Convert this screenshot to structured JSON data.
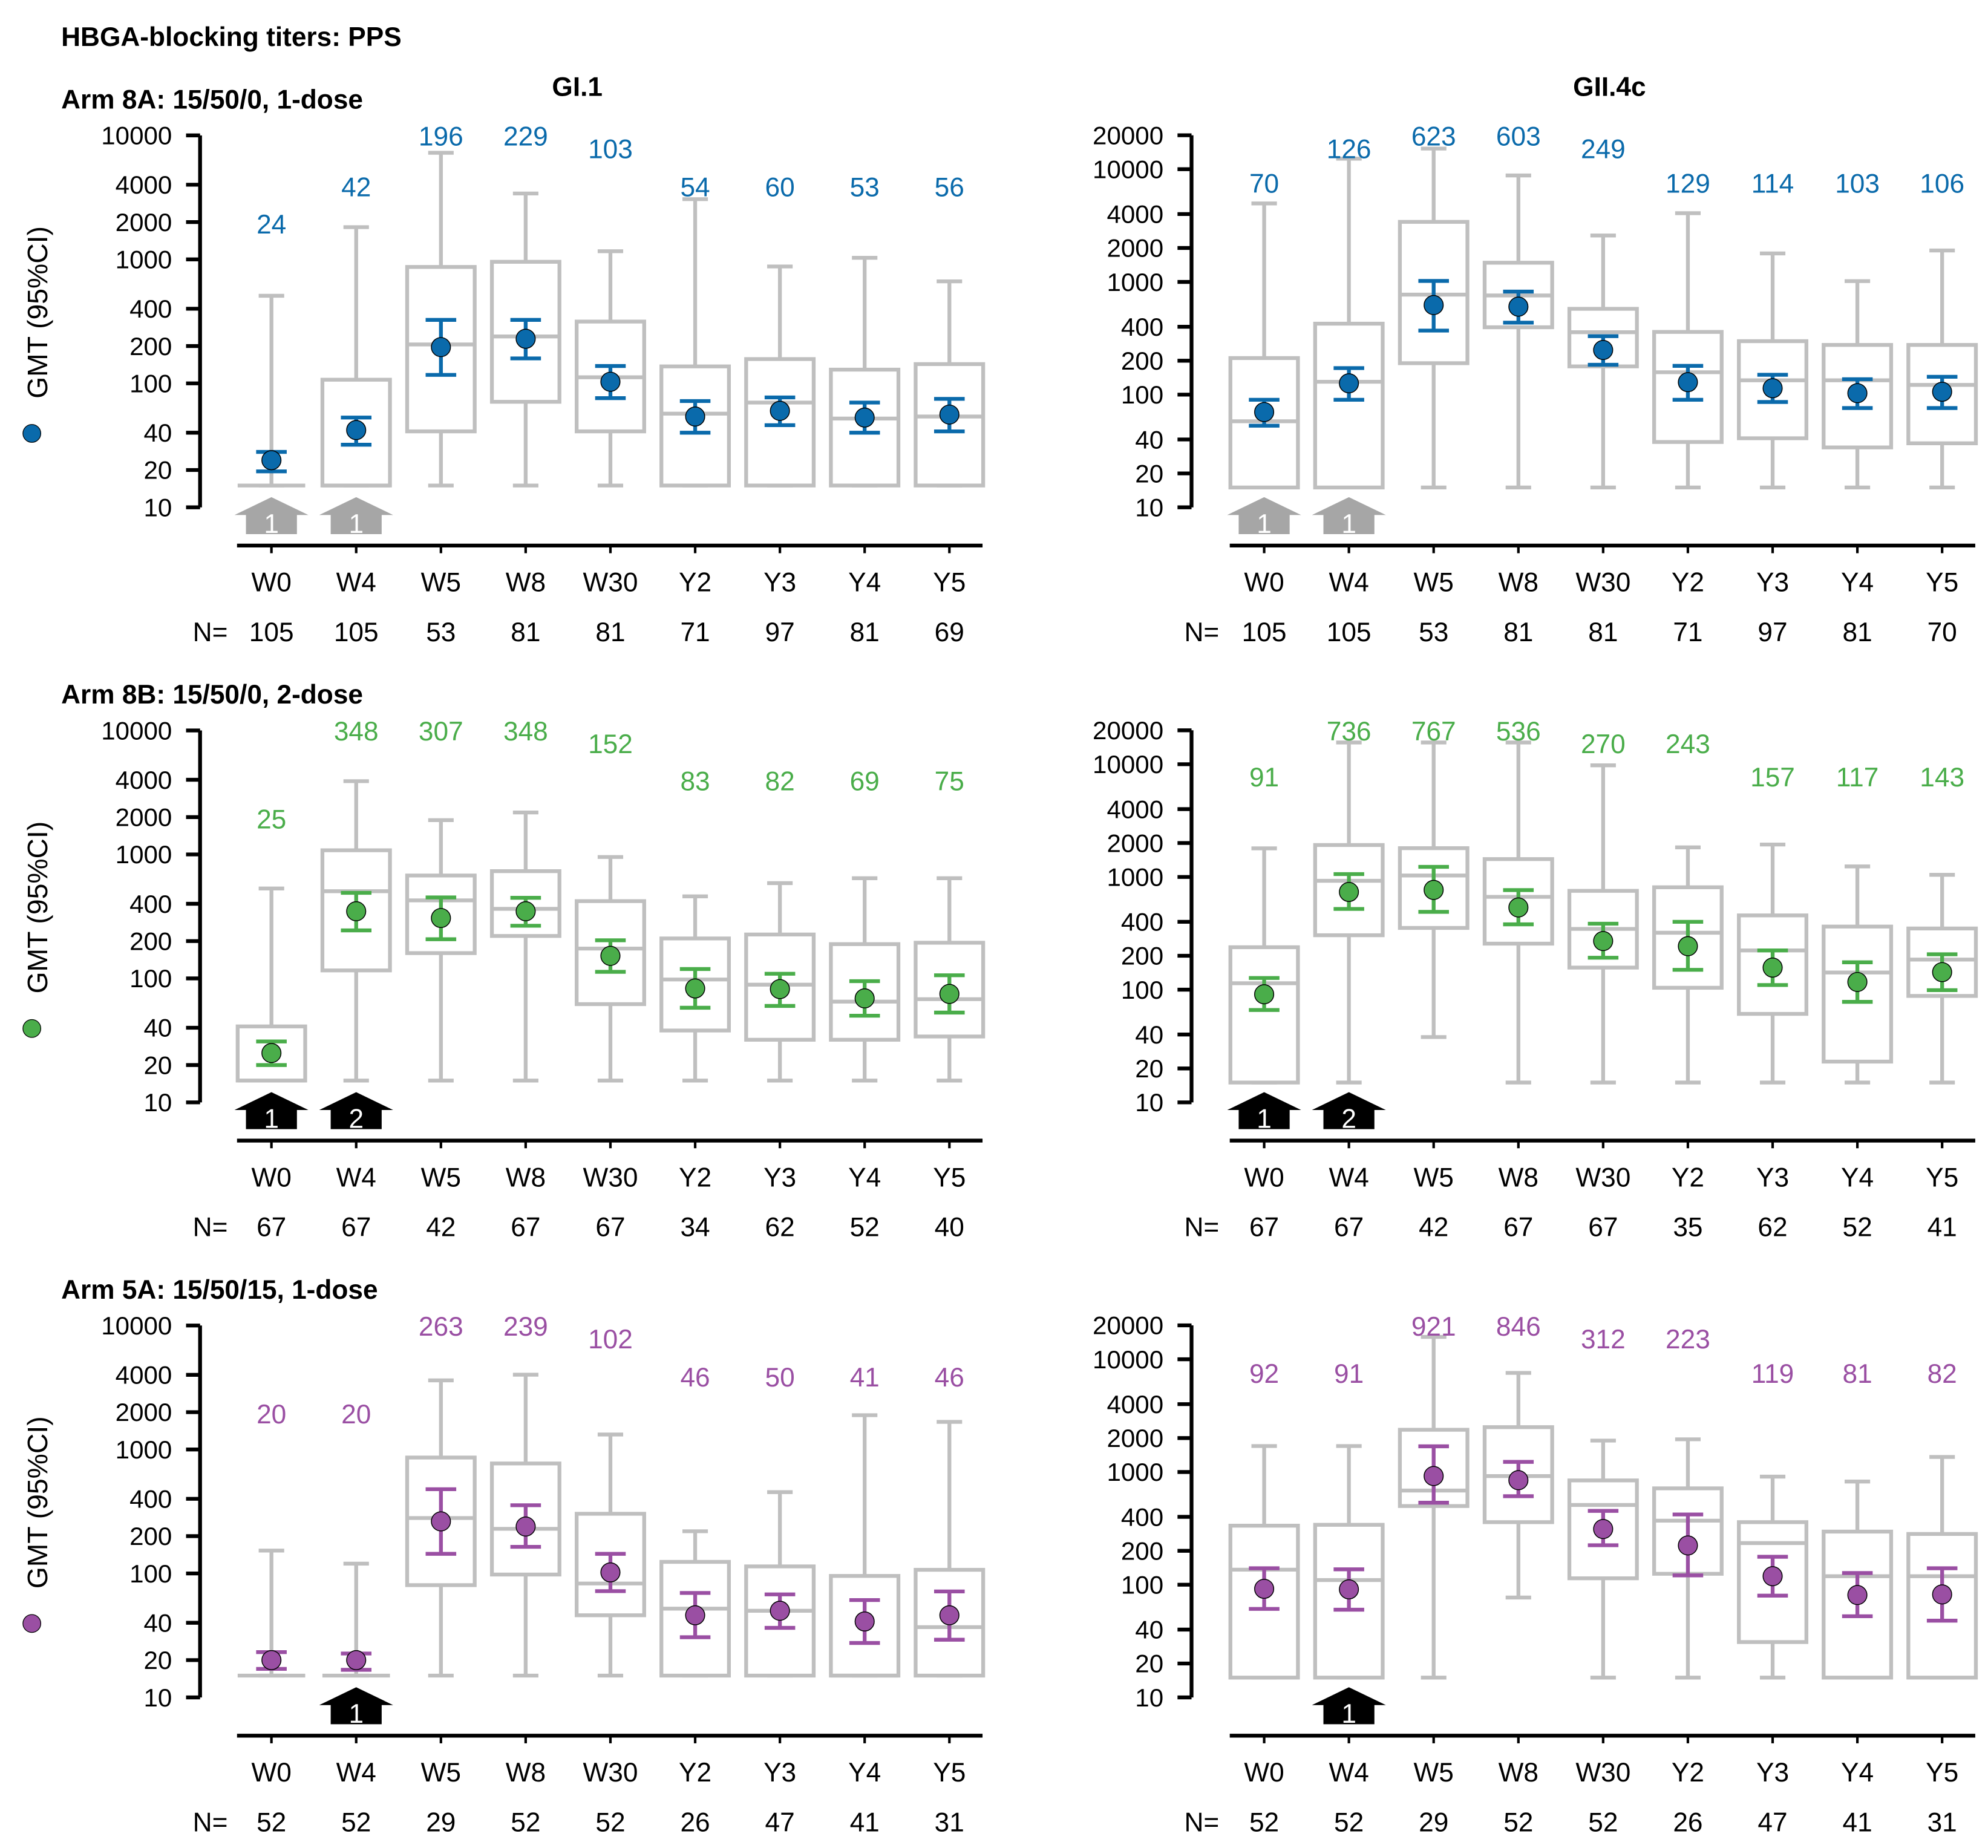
{
  "title": "HBGA-blocking titers: PPS",
  "y_axis_label": "GMT (95%CI)",
  "n_prefix": "N=",
  "colors": {
    "box": "#bfbfbf",
    "axis": "#000000",
    "marker_grey": "#a6a6a6",
    "marker_black": "#000000"
  },
  "chart_data": [
    {
      "type": "box",
      "arm": "Arm 8A: 15/50/0, 1-dose",
      "column_title": "GI.1",
      "color": "#0a6aab",
      "yscale": "log",
      "ylim": [
        10,
        10000
      ],
      "yticks": [
        10,
        20,
        40,
        100,
        200,
        400,
        1000,
        2000,
        4000,
        10000
      ],
      "categories": [
        "W0",
        "W4",
        "W5",
        "W8",
        "W30",
        "Y2",
        "Y3",
        "Y4",
        "Y5"
      ],
      "n": [
        105,
        105,
        53,
        81,
        81,
        71,
        97,
        81,
        69
      ],
      "gmt": [
        24,
        42,
        196,
        229,
        103,
        54,
        60,
        53,
        56
      ],
      "ci_low": [
        19.5,
        32,
        117,
        159,
        76,
        40,
        46,
        40,
        41
      ],
      "ci_high": [
        28,
        53,
        325,
        325,
        138,
        72,
        77,
        70,
        75
      ],
      "box_min": [
        15,
        15,
        15,
        15,
        15,
        15,
        15,
        15,
        15
      ],
      "q1": [
        15,
        15,
        41,
        71,
        41,
        15,
        15,
        15,
        15
      ],
      "median": [
        15,
        15,
        206,
        239,
        112,
        57,
        70,
        52,
        54
      ],
      "q3": [
        15,
        107,
        869,
        956,
        315,
        137,
        157,
        129,
        143
      ],
      "box_max": [
        509,
        1820,
        7240,
        3400,
        1164,
        3060,
        877,
        1030,
        665
      ],
      "markers": [
        {
          "category": "W0",
          "label": "1",
          "style": "grey"
        },
        {
          "category": "W4",
          "label": "1",
          "style": "grey"
        }
      ]
    },
    {
      "type": "box",
      "column_title": "GII.4c",
      "color": "#0a6aab",
      "yscale": "log",
      "ylim": [
        10,
        20000
      ],
      "yticks": [
        10,
        20,
        40,
        100,
        200,
        400,
        1000,
        2000,
        4000,
        10000,
        20000
      ],
      "categories": [
        "W0",
        "W4",
        "W5",
        "W8",
        "W30",
        "Y2",
        "Y3",
        "Y4",
        "Y5"
      ],
      "n": [
        105,
        105,
        53,
        81,
        81,
        71,
        97,
        81,
        70
      ],
      "gmt": [
        70,
        126,
        623,
        603,
        249,
        129,
        114,
        103,
        106
      ],
      "ci_low": [
        53,
        90,
        370,
        435,
        184,
        90,
        86,
        76,
        76
      ],
      "ci_high": [
        90,
        172,
        1020,
        820,
        330,
        180,
        150,
        137,
        144
      ],
      "box_min": [
        15,
        15,
        15,
        15,
        15,
        15,
        15,
        15,
        15
      ],
      "q1": [
        15,
        15,
        190,
        396,
        178,
        38,
        41,
        34,
        37
      ],
      "median": [
        58,
        130,
        771,
        758,
        358,
        158,
        134,
        134,
        122
      ],
      "q3": [
        211,
        426,
        3410,
        1480,
        577,
        360,
        298,
        276,
        276
      ],
      "box_max": [
        4970,
        12400,
        15240,
        8800,
        2580,
        4070,
        1790,
        1016,
        1900
      ],
      "markers": [
        {
          "category": "W0",
          "label": "1",
          "style": "grey"
        },
        {
          "category": "W4",
          "label": "1",
          "style": "grey"
        }
      ]
    },
    {
      "type": "box",
      "arm": "Arm 8B: 15/50/0, 2-dose",
      "color": "#4aad4a",
      "yscale": "log",
      "ylim": [
        10,
        10000
      ],
      "yticks": [
        10,
        20,
        40,
        100,
        200,
        400,
        1000,
        2000,
        4000,
        10000
      ],
      "categories": [
        "W0",
        "W4",
        "W5",
        "W8",
        "W30",
        "Y2",
        "Y3",
        "Y4",
        "Y5"
      ],
      "n": [
        67,
        67,
        42,
        67,
        67,
        34,
        62,
        52,
        40
      ],
      "gmt": [
        25,
        348,
        307,
        348,
        152,
        83,
        82,
        69,
        75
      ],
      "ci_low": [
        20,
        244,
        207,
        266,
        113,
        58,
        60,
        50,
        53
      ],
      "ci_high": [
        31,
        490,
        450,
        447,
        203,
        119,
        109,
        95,
        106
      ],
      "box_min": [
        15,
        15,
        15,
        15,
        15,
        15,
        15,
        15,
        15
      ],
      "q1": [
        15,
        116,
        160,
        220,
        62,
        38,
        32,
        32,
        34
      ],
      "median": [
        15,
        505,
        426,
        364,
        174,
        98,
        89,
        65,
        68
      ],
      "q3": [
        41,
        1080,
        676,
        733,
        420,
        210,
        226,
        189,
        194
      ],
      "box_max": [
        531,
        3900,
        1890,
        2180,
        953,
        459,
        587,
        643,
        643
      ],
      "markers": [
        {
          "category": "W0",
          "label": "1",
          "style": "black"
        },
        {
          "category": "W4",
          "label": "2",
          "style": "black"
        }
      ]
    },
    {
      "type": "box",
      "color": "#4aad4a",
      "yscale": "log",
      "ylim": [
        10,
        20000
      ],
      "yticks": [
        10,
        20,
        40,
        100,
        200,
        400,
        1000,
        2000,
        4000,
        10000,
        20000
      ],
      "categories": [
        "W0",
        "W4",
        "W5",
        "W8",
        "W30",
        "Y2",
        "Y3",
        "Y4",
        "Y5"
      ],
      "n": [
        67,
        67,
        42,
        67,
        67,
        35,
        62,
        52,
        41
      ],
      "gmt": [
        91,
        736,
        767,
        536,
        270,
        243,
        157,
        117,
        143
      ],
      "ci_low": [
        66,
        520,
        490,
        380,
        192,
        150,
        110,
        78,
        99
      ],
      "ci_high": [
        127,
        1060,
        1230,
        765,
        385,
        400,
        223,
        175,
        206
      ],
      "box_min": [
        15,
        15,
        38,
        15,
        15,
        15,
        15,
        15,
        15
      ],
      "q1": [
        15,
        304,
        353,
        256,
        157,
        104,
        61,
        23,
        88
      ],
      "median": [
        114,
        925,
        1030,
        666,
        346,
        320,
        223,
        142,
        185
      ],
      "q3": [
        238,
        1920,
        1800,
        1440,
        753,
        810,
        456,
        363,
        349
      ],
      "box_max": [
        1794,
        15600,
        15600,
        15600,
        9780,
        1830,
        1940,
        1240,
        1045
      ],
      "markers": [
        {
          "category": "W0",
          "label": "1",
          "style": "black"
        },
        {
          "category": "W4",
          "label": "2",
          "style": "black"
        }
      ]
    },
    {
      "type": "box",
      "arm": "Arm 5A: 15/50/15, 1-dose",
      "color": "#9a4fa3",
      "yscale": "log",
      "ylim": [
        10,
        10000
      ],
      "yticks": [
        10,
        20,
        40,
        100,
        200,
        400,
        1000,
        2000,
        4000,
        10000
      ],
      "categories": [
        "W0",
        "W4",
        "W5",
        "W8",
        "W30",
        "Y2",
        "Y3",
        "Y4",
        "Y5"
      ],
      "n": [
        52,
        52,
        29,
        52,
        52,
        26,
        47,
        41,
        31
      ],
      "gmt": [
        20,
        20,
        263,
        239,
        102,
        46,
        50,
        41,
        46
      ],
      "ci_low": [
        17,
        16.7,
        144,
        164,
        72,
        30.6,
        36.4,
        27.5,
        29.2
      ],
      "ci_high": [
        23.2,
        22.6,
        478,
        355,
        144,
        69.6,
        67.8,
        61,
        71.6
      ],
      "box_min": [
        15,
        15,
        15,
        15,
        15,
        15,
        15,
        15,
        15
      ],
      "q1": [
        15,
        15,
        80.5,
        98,
        46,
        15,
        15,
        15,
        15
      ],
      "median": [
        15,
        15,
        280,
        229,
        83,
        52,
        50,
        15,
        36.9
      ],
      "q3": [
        15,
        15,
        861,
        771,
        303,
        124,
        114,
        95.5,
        107
      ],
      "box_max": [
        153,
        120,
        3610,
        4010,
        1320,
        219,
        453,
        1890,
        1670
      ],
      "markers": [
        {
          "category": "W4",
          "label": "1",
          "style": "black"
        }
      ]
    },
    {
      "type": "box",
      "color": "#9a4fa3",
      "yscale": "log",
      "ylim": [
        10,
        20000
      ],
      "yticks": [
        10,
        20,
        40,
        100,
        200,
        400,
        1000,
        2000,
        4000,
        10000,
        20000
      ],
      "categories": [
        "W0",
        "W4",
        "W5",
        "W8",
        "W30",
        "Y2",
        "Y3",
        "Y4",
        "Y5"
      ],
      "n": [
        52,
        52,
        29,
        52,
        52,
        26,
        47,
        41,
        31
      ],
      "gmt": [
        92,
        91,
        921,
        846,
        312,
        223,
        119,
        81,
        82
      ],
      "ci_low": [
        61,
        60,
        534,
        610,
        224,
        121,
        80,
        52.5,
        48
      ],
      "ci_high": [
        140,
        137,
        1690,
        1230,
        452,
        420,
        177,
        127,
        140
      ],
      "box_min": [
        15,
        15,
        15,
        77,
        15,
        15,
        15,
        15,
        15
      ],
      "q1": [
        15,
        15,
        499,
        359,
        114,
        125,
        31,
        15,
        15
      ],
      "median": [
        136,
        110,
        685,
        920,
        510,
        370,
        234,
        119,
        119
      ],
      "q3": [
        334,
        340,
        2370,
        2500,
        842,
        716,
        359,
        296,
        282
      ],
      "box_max": [
        1700,
        1700,
        15800,
        7570,
        1900,
        1950,
        910,
        823,
        1360
      ],
      "markers": [
        {
          "category": "W4",
          "label": "1",
          "style": "black"
        }
      ]
    }
  ]
}
